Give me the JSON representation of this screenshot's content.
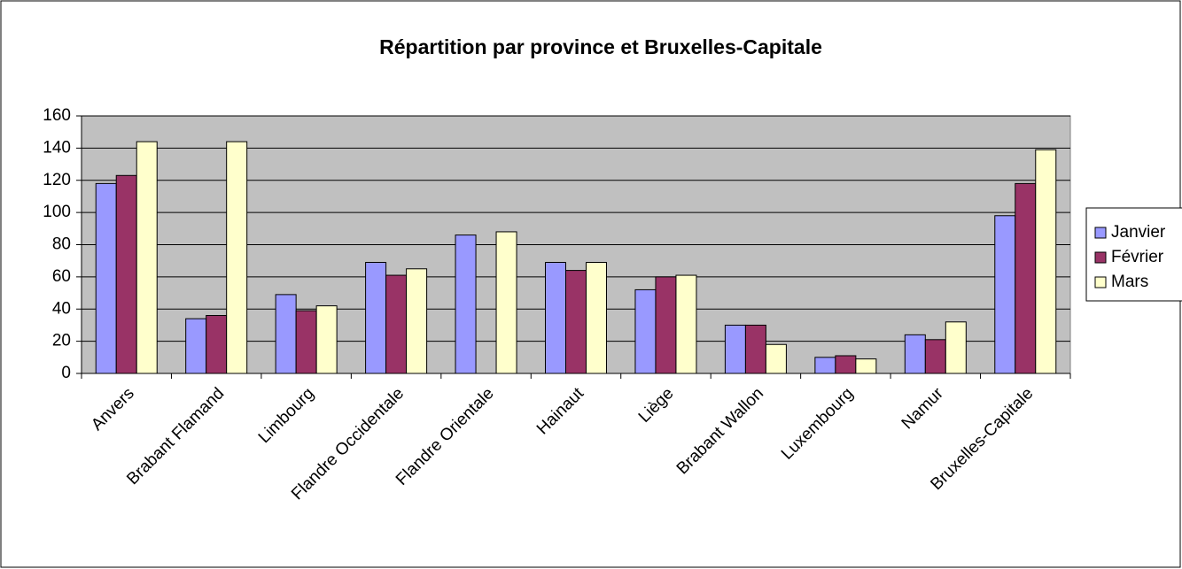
{
  "chart_data": {
    "type": "bar",
    "title": "Répartition par province et Bruxelles-Capitale",
    "categories": [
      "Anvers",
      "Brabant Flamand",
      "Limbourg",
      "Flandre Occidentale",
      "Flandre Orientale",
      "Hainaut",
      "Liège",
      "Brabant Wallon",
      "Luxembourg",
      "Namur",
      "Bruxelles-Capitale"
    ],
    "series": [
      {
        "name": "Janvier",
        "color": "#9999ff",
        "values": [
          118,
          34,
          49,
          69,
          86,
          69,
          52,
          30,
          10,
          24,
          98
        ]
      },
      {
        "name": "Février",
        "color": "#993366",
        "values": [
          123,
          36,
          39,
          61,
          0,
          64,
          60,
          30,
          11,
          21,
          118
        ]
      },
      {
        "name": "Mars",
        "color": "#ffffcc",
        "values": [
          144,
          144,
          42,
          65,
          88,
          69,
          61,
          18,
          9,
          32,
          139
        ]
      }
    ],
    "ylim": [
      0,
      160
    ],
    "yticks": [
      0,
      20,
      40,
      60,
      80,
      100,
      120,
      140,
      160
    ],
    "grid": true,
    "legend": "right",
    "plot_background": "#c0c0c0"
  }
}
